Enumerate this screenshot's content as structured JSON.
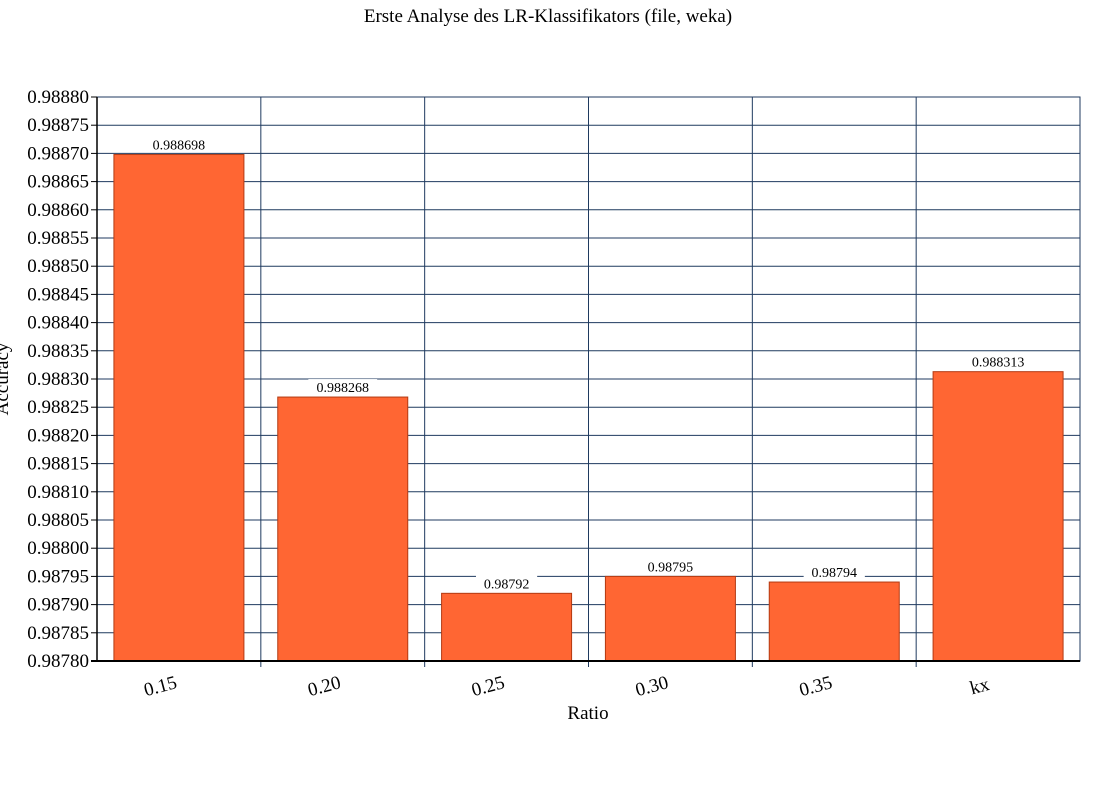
{
  "chart_data": {
    "type": "bar",
    "title": "Erste Analyse des LR-Klassifikators (file, weka)",
    "xlabel": "Ratio",
    "ylabel": "Accuracy",
    "categories": [
      "0.15",
      "0.20",
      "0.25",
      "0.30",
      "0.35",
      "kx"
    ],
    "values": [
      0.988698,
      0.988268,
      0.98792,
      0.98795,
      0.98794,
      0.988313
    ],
    "data_labels": [
      "0.988698",
      "0.988268",
      "0.98792",
      "0.98795",
      "0.98794",
      "0.988313"
    ],
    "ylim": [
      0.9878,
      0.9888
    ],
    "yticks": [
      "0.98780",
      "0.98785",
      "0.98790",
      "0.98795",
      "0.98800",
      "0.98805",
      "0.98810",
      "0.98815",
      "0.98820",
      "0.98825",
      "0.98830",
      "0.98835",
      "0.98840",
      "0.98845",
      "0.98850",
      "0.98855",
      "0.98860",
      "0.98865",
      "0.98870",
      "0.98875",
      "0.98880"
    ],
    "grid": true,
    "legend": "none",
    "bar_color": "#FF6633",
    "grid_color": "#1F3A5F"
  }
}
